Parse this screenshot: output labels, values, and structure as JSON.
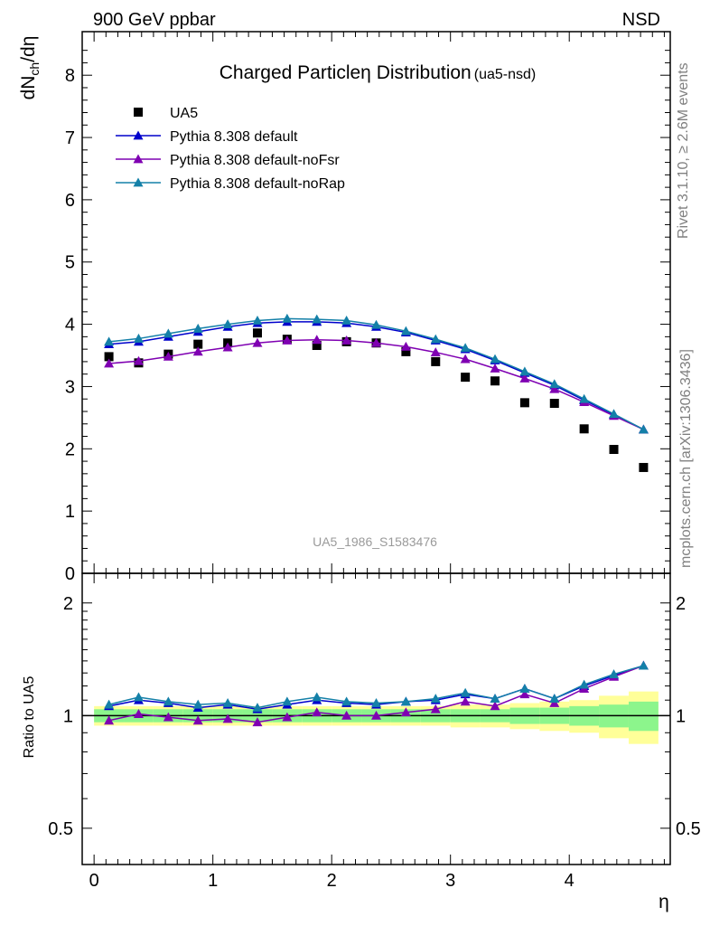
{
  "header": {
    "left": "900 GeV ppbar",
    "right": "NSD"
  },
  "side": {
    "rivet": "Rivet 3.1.10, ≥ 2.6M events",
    "mcplots": "mcplots.cern.ch [arXiv:1306.3436]"
  },
  "title": {
    "main_a": "Charged Particle",
    "main_eta": "η",
    "main_b": " Distribution",
    "sub": "(ua5-nsd)"
  },
  "analysis_id": "UA5_1986_S1583476",
  "axes": {
    "ylabel_top": "dN",
    "ylabel_top_sub": "ch",
    "ylabel_top_tail": "/dη",
    "ylabel_bottom": "Ratio to UA5",
    "xlabel": "η"
  },
  "colors": {
    "data": "#000000",
    "default": "#0000cc",
    "noFsr": "#7f00b2",
    "noRap": "#1480a8",
    "band_inner": "#8cf58c",
    "band_outer": "#ffff99"
  },
  "chart_data": [
    {
      "type": "scatter",
      "panel": "main",
      "xlim": [
        -0.1,
        4.85
      ],
      "ylim": [
        0,
        8.7
      ],
      "xticks": [
        0,
        1,
        2,
        3,
        4
      ],
      "yticks": [
        0,
        1,
        2,
        3,
        4,
        5,
        6,
        7,
        8
      ],
      "ytick_labels": [
        "0",
        "1",
        "2",
        "3",
        "4",
        "5",
        "6",
        "7",
        "8"
      ],
      "x": [
        0.125,
        0.375,
        0.625,
        0.875,
        1.125,
        1.375,
        1.625,
        1.875,
        2.125,
        2.375,
        2.625,
        2.875,
        3.125,
        3.375,
        3.625,
        3.875,
        4.125,
        4.375,
        4.625
      ],
      "series": [
        {
          "name": "UA5",
          "key": "data",
          "marker": "square",
          "line": false,
          "values": [
            3.48,
            3.38,
            3.52,
            3.68,
            3.7,
            3.86,
            3.76,
            3.66,
            3.72,
            3.7,
            3.56,
            3.4,
            3.15,
            3.09,
            2.74,
            2.73,
            2.32,
            1.99,
            1.7
          ]
        },
        {
          "name": "Pythia 8.308 default",
          "key": "default",
          "marker": "triangle",
          "line": true,
          "values": [
            3.68,
            3.72,
            3.8,
            3.88,
            3.96,
            4.02,
            4.04,
            4.04,
            4.02,
            3.96,
            3.87,
            3.74,
            3.6,
            3.42,
            3.22,
            3.02,
            2.78,
            2.55,
            2.31
          ]
        },
        {
          "name": "Pythia 8.308 default-noFsr",
          "key": "noFsr",
          "marker": "triangle",
          "line": true,
          "values": [
            3.37,
            3.41,
            3.48,
            3.56,
            3.63,
            3.7,
            3.74,
            3.75,
            3.74,
            3.7,
            3.64,
            3.55,
            3.44,
            3.29,
            3.13,
            2.96,
            2.75,
            2.53,
            2.31
          ]
        },
        {
          "name": "Pythia 8.308 default-noRap",
          "key": "noRap",
          "marker": "triangle",
          "line": true,
          "values": [
            3.72,
            3.77,
            3.85,
            3.93,
            4.0,
            4.06,
            4.09,
            4.08,
            4.06,
            3.99,
            3.89,
            3.76,
            3.62,
            3.44,
            3.24,
            3.04,
            2.8,
            2.56,
            2.31
          ]
        }
      ]
    },
    {
      "type": "line",
      "panel": "ratio",
      "xlim": [
        -0.1,
        4.85
      ],
      "ylim": [
        0.4,
        2.4
      ],
      "log_y": true,
      "xticks": [
        0,
        1,
        2,
        3,
        4
      ],
      "yticks": [
        0.5,
        1,
        2
      ],
      "ytick_labels": [
        "0.5",
        "1",
        "2"
      ],
      "x": [
        0.125,
        0.375,
        0.625,
        0.875,
        1.125,
        1.375,
        1.625,
        1.875,
        2.125,
        2.375,
        2.625,
        2.875,
        3.125,
        3.375,
        3.625,
        3.875,
        4.125,
        4.375,
        4.625
      ],
      "band_inner": [
        0.04,
        0.04,
        0.04,
        0.04,
        0.04,
        0.04,
        0.04,
        0.04,
        0.04,
        0.04,
        0.04,
        0.04,
        0.04,
        0.04,
        0.05,
        0.05,
        0.06,
        0.07,
        0.09
      ],
      "band_outer": [
        0.06,
        0.06,
        0.06,
        0.06,
        0.06,
        0.06,
        0.06,
        0.06,
        0.06,
        0.06,
        0.06,
        0.06,
        0.07,
        0.07,
        0.08,
        0.09,
        0.1,
        0.13,
        0.16
      ],
      "series": [
        {
          "name": "Pythia 8.308 default",
          "key": "default",
          "values": [
            1.06,
            1.1,
            1.08,
            1.05,
            1.07,
            1.04,
            1.07,
            1.1,
            1.08,
            1.07,
            1.09,
            1.1,
            1.14,
            1.11,
            1.18,
            1.11,
            1.2,
            1.28,
            1.36
          ]
        },
        {
          "name": "Pythia 8.308 default-noFsr",
          "key": "noFsr",
          "values": [
            0.97,
            1.01,
            0.99,
            0.97,
            0.98,
            0.96,
            0.99,
            1.02,
            1.0,
            1.0,
            1.02,
            1.04,
            1.09,
            1.06,
            1.14,
            1.08,
            1.18,
            1.27,
            1.36
          ]
        },
        {
          "name": "Pythia 8.308 default-noRap",
          "key": "noRap",
          "values": [
            1.07,
            1.12,
            1.09,
            1.07,
            1.08,
            1.05,
            1.09,
            1.12,
            1.09,
            1.08,
            1.09,
            1.11,
            1.15,
            1.11,
            1.18,
            1.11,
            1.21,
            1.29,
            1.36
          ]
        }
      ]
    }
  ]
}
